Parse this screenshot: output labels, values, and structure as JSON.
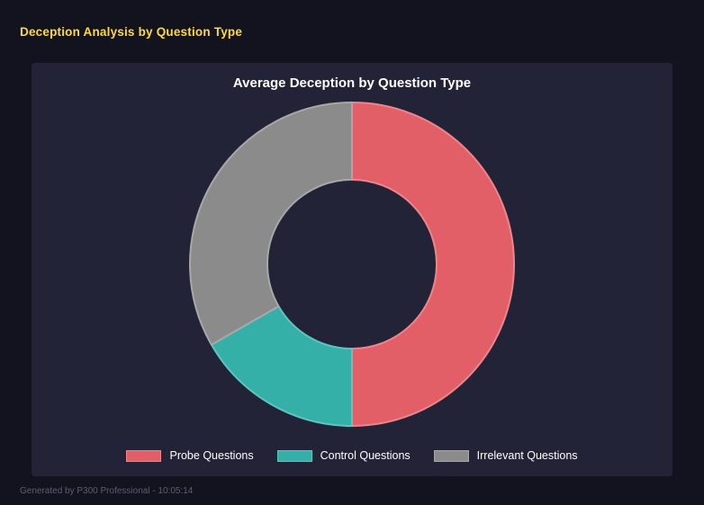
{
  "page": {
    "title": "Deception Analysis by Question Type",
    "footer": "Generated by P300 Professional - 10:05:14"
  },
  "chart_data": {
    "type": "pie",
    "subtype": "donut",
    "title": "Average Deception by Question Type",
    "labels": [
      "Probe Questions",
      "Control Questions",
      "Irrelevant Questions"
    ],
    "values_percent_of_total": [
      50,
      16.7,
      33.3
    ],
    "colors": [
      "#e25f67",
      "#35b0a8",
      "#8b8b8b"
    ],
    "border_colors": [
      "#ef858c",
      "#5cc6bf",
      "#a8a8a8"
    ],
    "start_angle_deg": 0,
    "direction": "clockwise",
    "legend_position": "bottom",
    "hole_color_note": "panel background shows through donut hole"
  },
  "colors": {
    "page_bg": "#131320",
    "panel_bg": "#232338",
    "title": "#ffd93d",
    "chart_title": "#ffffff",
    "legend_text": "#ffffff",
    "footer_text": "#5d5d6e"
  }
}
